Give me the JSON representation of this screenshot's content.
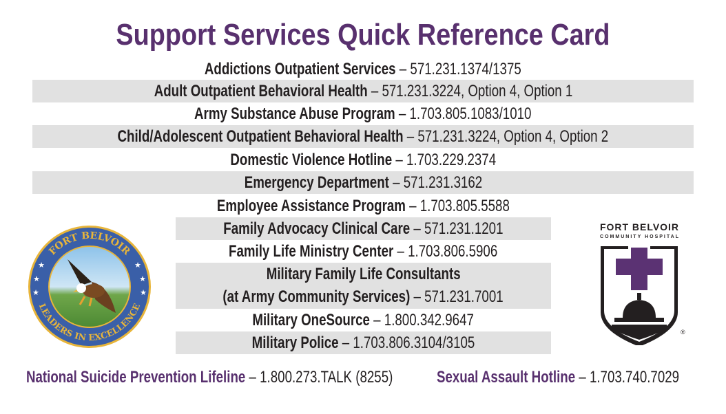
{
  "title": "Support Services Quick Reference Card",
  "separator": " – ",
  "services": [
    {
      "name": "Addictions Outpatient Services",
      "number": "571.231.1374/1375"
    },
    {
      "name": "Adult Outpatient Behavioral Health",
      "number": "571.231.3224, Option 4, Option 1"
    },
    {
      "name": "Army Substance Abuse Program",
      "number": "1.703.805.1083/1010"
    },
    {
      "name": "Child/Adolescent Outpatient Behavioral Health",
      "number": "571.231.3224, Option 4, Option 2"
    },
    {
      "name": "Domestic Violence Hotline",
      "number": "1.703.229.2374"
    },
    {
      "name": "Emergency Department",
      "number": "571.231.3162"
    },
    {
      "name": "Employee Assistance Program",
      "number": "1.703.805.5588"
    },
    {
      "name": "Family Advocacy Clinical Care",
      "number": "571.231.1201"
    },
    {
      "name": "Family Life Ministry Center",
      "number": "1.703.806.5906"
    },
    {
      "name": "Military Family Life Consultants",
      "name_line2": "(at Army Community Services)",
      "number": "571.231.7001"
    },
    {
      "name": "Military OneSource",
      "number": "1.800.342.9647"
    },
    {
      "name": "Military Police",
      "number": "1.703.806.3104/3105"
    }
  ],
  "footer": [
    {
      "name": "National Suicide Prevention Lifeline",
      "number": "1.800.273.TALK (8255)"
    },
    {
      "name": "Sexual Assault Hotline",
      "number": "1.703.740.7029"
    }
  ],
  "seal": {
    "top_text": "FORT BELVOIR",
    "bottom_text": "LEADERS IN EXCELLENCE"
  },
  "hospital_logo": {
    "line1": "FORT BELVOIR",
    "line2": "COMMUNITY HOSPITAL",
    "mark": "®"
  },
  "colors": {
    "title": "#58306e",
    "row_shade": "#e1e1e1",
    "cross": "#5b3273",
    "seal_ring": "#3a5fa8",
    "seal_gold": "#e8b53a"
  }
}
